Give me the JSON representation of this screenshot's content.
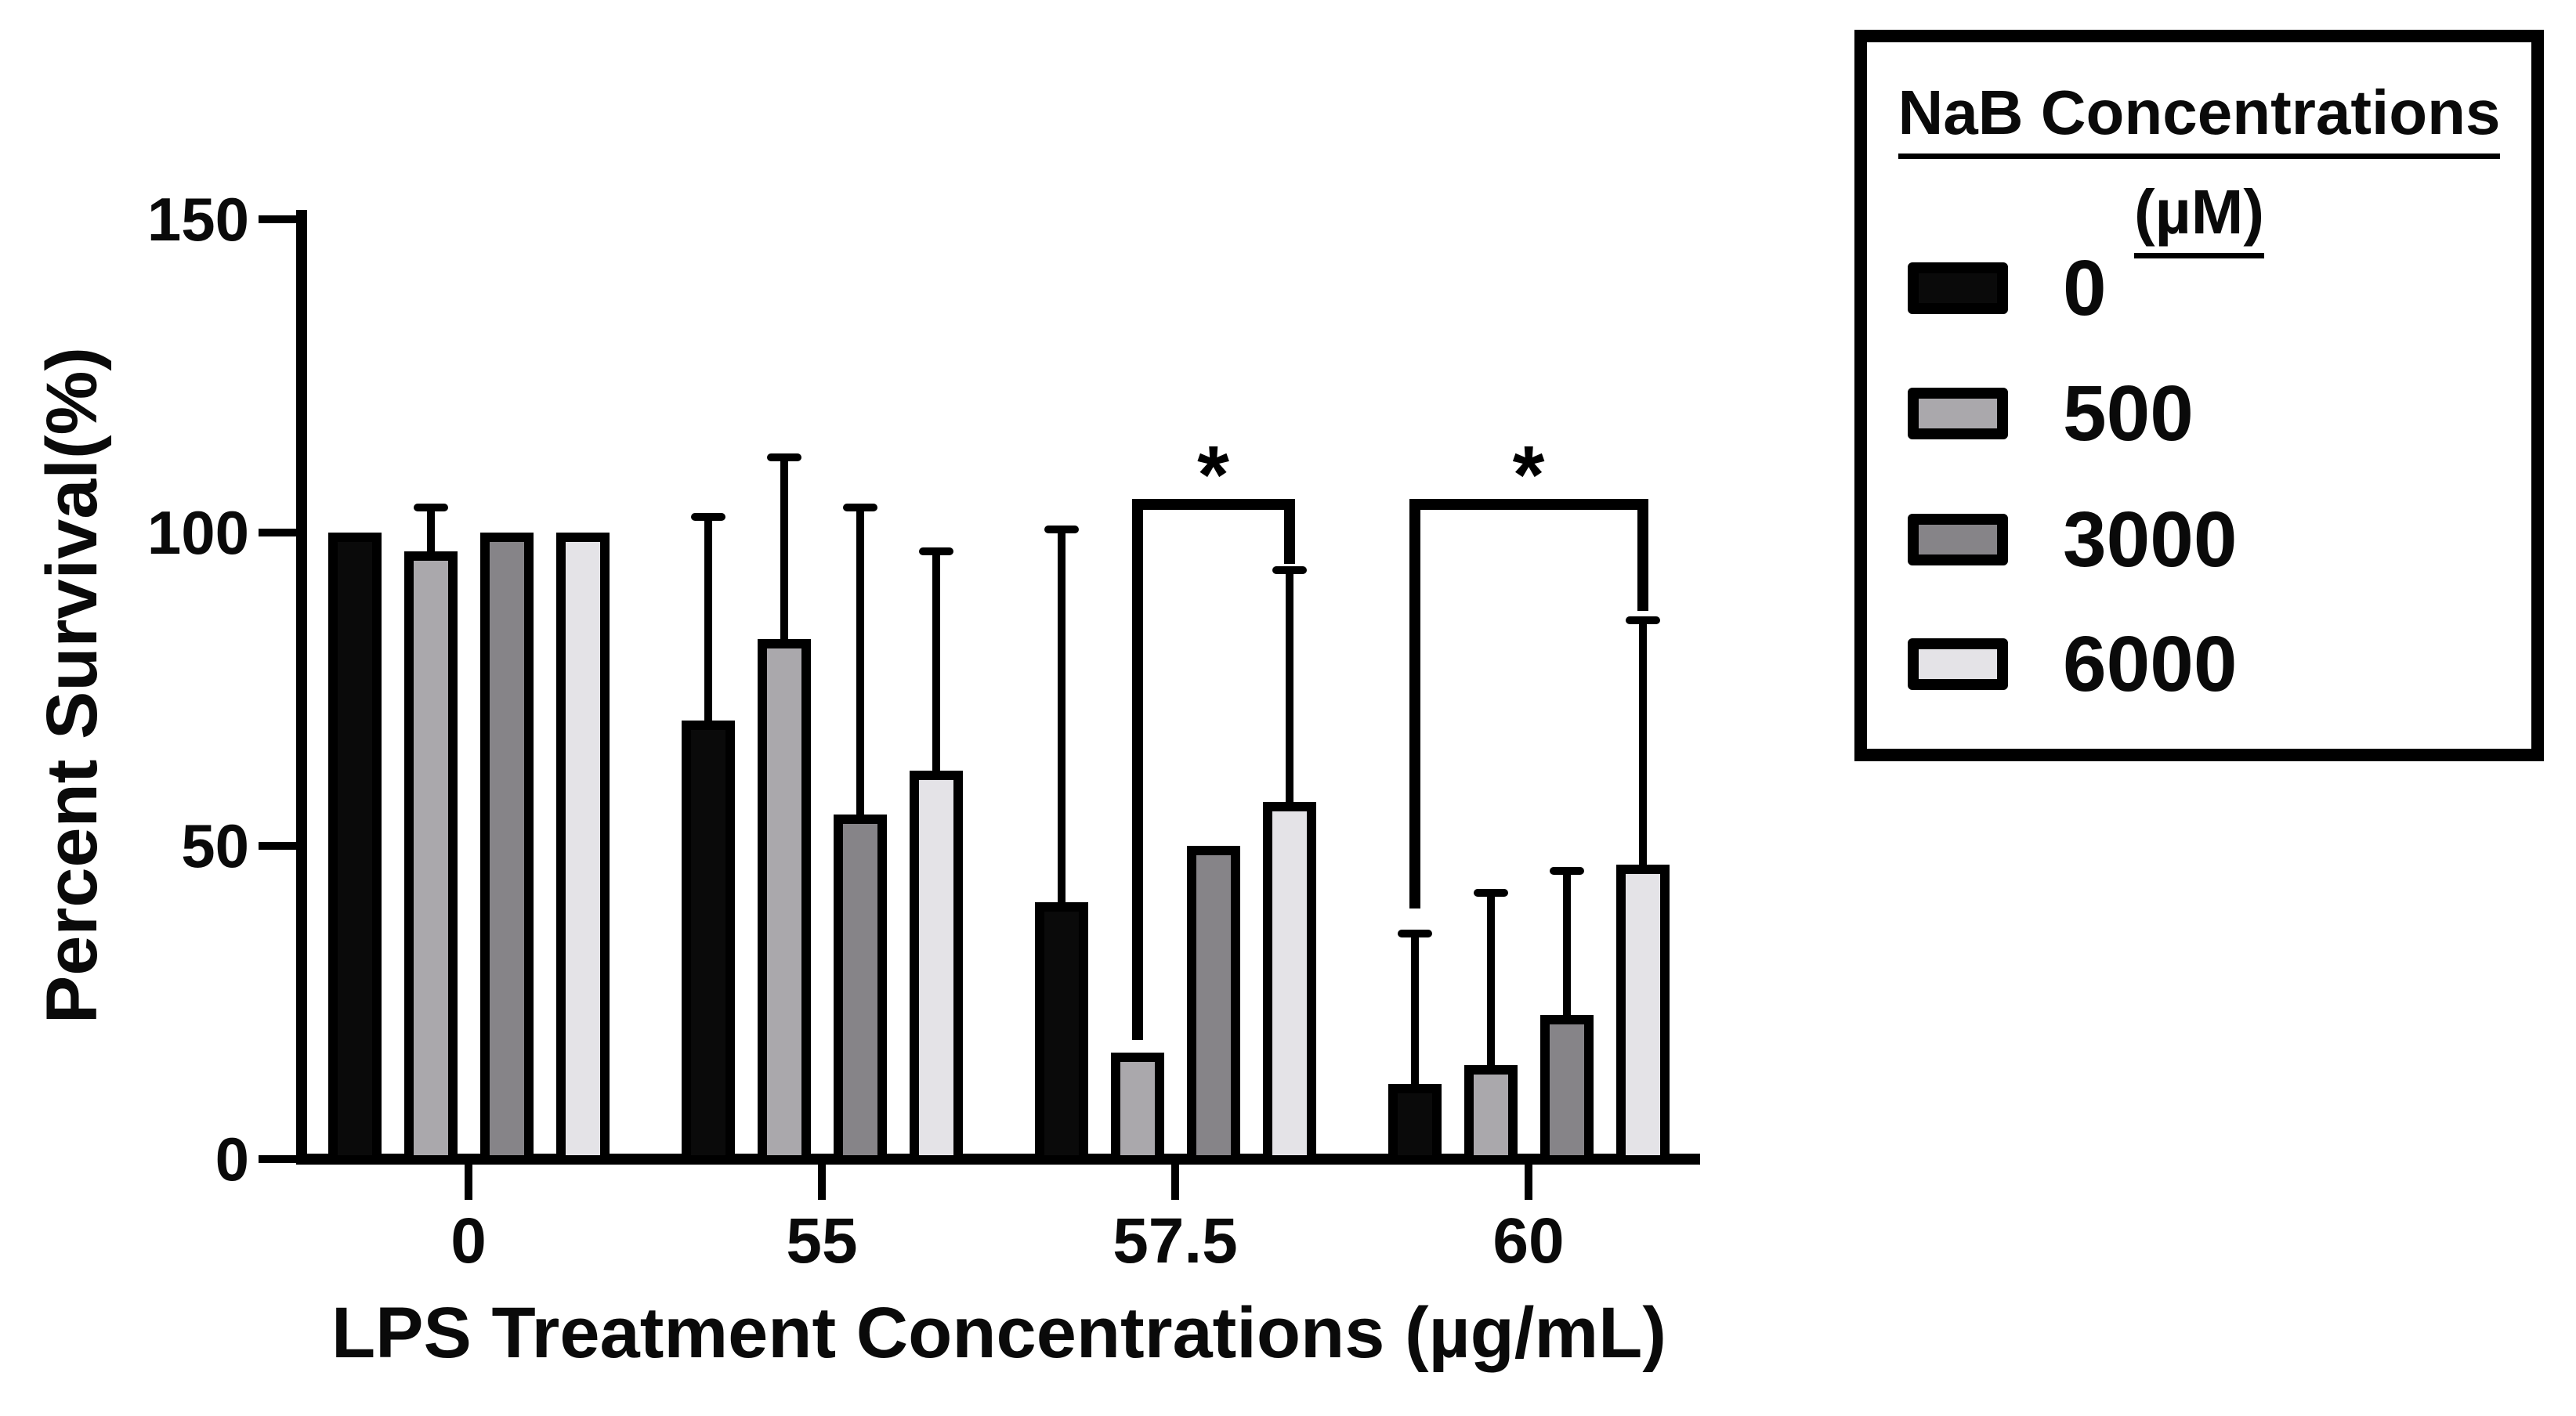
{
  "chart_data": {
    "type": "bar",
    "title": "",
    "ylabel": "Percent Survival(%)",
    "xlabel": "LPS Treatment Concentrations (µg/mL)",
    "x_axis_categories": [
      "0",
      "55",
      "57.5",
      "60"
    ],
    "yticks": [
      "150",
      "100",
      "50",
      "0"
    ],
    "ytick_values": [
      150,
      100,
      50,
      0
    ],
    "ylim": [
      0,
      150
    ],
    "grid": false,
    "axis_color": "#000000",
    "legend": {
      "title_line1": "NaB Concentrations",
      "title_line2": "(µM)",
      "position": "top-right"
    },
    "series": [
      {
        "name": "0",
        "color": "#0a0a0a",
        "values": [
          100,
          70,
          41,
          12
        ],
        "error_top": [
          null,
          102.5,
          100.5,
          36
        ]
      },
      {
        "name": "500",
        "color": "#aaa8ac",
        "values": [
          97,
          83,
          17,
          15
        ],
        "error_top": [
          104,
          112,
          null,
          42.5
        ]
      },
      {
        "name": "3000",
        "color": "#868488",
        "values": [
          100,
          55,
          50,
          23
        ],
        "error_top": [
          null,
          104,
          null,
          46
        ]
      },
      {
        "name": "6000",
        "color": "#e4e3e7",
        "values": [
          100,
          62,
          57,
          47
        ],
        "error_top": [
          null,
          97,
          94,
          86
        ]
      }
    ],
    "annotations": [
      {
        "type": "bracket",
        "label": "*",
        "category": "57.5",
        "from_series": "500",
        "to_series": "6000",
        "top_value": 104.5,
        "left_leg_bottom_value": 19,
        "right_leg_bottom_value": 95
      },
      {
        "type": "bracket",
        "label": "*",
        "category": "60",
        "from_series": "0",
        "to_series": "6000",
        "top_value": 104.5,
        "left_leg_bottom_value": 40,
        "right_leg_bottom_value": 87.5
      }
    ]
  }
}
